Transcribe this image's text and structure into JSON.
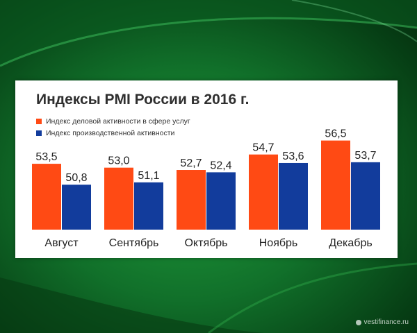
{
  "chart_data": {
    "type": "bar",
    "title": "Индексы PMI России в 2016 г.",
    "categories": [
      "Август",
      "Сентябрь",
      "Октябрь",
      "Ноябрь",
      "Декабрь"
    ],
    "series": [
      {
        "name": "Индекс деловой активности в сфере услуг",
        "color": "#ff4a14",
        "values": [
          53.5,
          53.0,
          52.7,
          54.7,
          56.5
        ],
        "labels": [
          "53,5",
          "53,0",
          "52,7",
          "54,7",
          "56,5"
        ]
      },
      {
        "name": "Индекс производственной активности",
        "color": "#123c9c",
        "values": [
          50.8,
          51.1,
          52.4,
          53.6,
          53.7
        ],
        "labels": [
          "50,8",
          "51,1",
          "52,4",
          "53,6",
          "53,7"
        ]
      }
    ],
    "xlabel": "",
    "ylabel": "",
    "ylim": [
      45,
      57
    ],
    "grid": false,
    "legend": "top-left"
  },
  "watermark": "vestifinance.ru"
}
